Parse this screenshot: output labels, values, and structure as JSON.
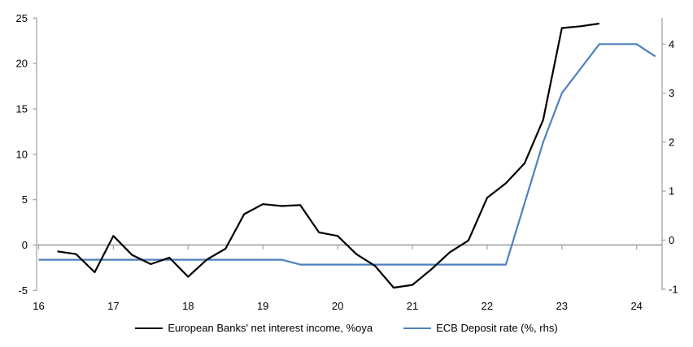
{
  "chart_data": {
    "type": "line",
    "title": "",
    "subtitle": "",
    "grid": "zero-line-only",
    "legend_position": "bottom",
    "x_axis": {
      "ticks": [
        16,
        17,
        18,
        19,
        20,
        21,
        22,
        23,
        24
      ],
      "labels": [
        "16",
        "17",
        "18",
        "19",
        "20",
        "21",
        "22",
        "23",
        "24"
      ],
      "range": [
        16,
        24.35
      ],
      "unit": "year (20xx)"
    },
    "left_axis": {
      "label": "",
      "ticks": [
        25,
        20,
        15,
        10,
        5,
        0,
        -5
      ],
      "range": [
        -5,
        25
      ]
    },
    "right_axis": {
      "label": "",
      "ticks": [
        4,
        3,
        2,
        1,
        0,
        -1
      ],
      "range": [
        -1,
        4.55
      ]
    },
    "series": [
      {
        "name": "European Banks' net interest income, %oya",
        "color": "#000000",
        "axis": "left",
        "points": [
          [
            16.25,
            -0.7
          ],
          [
            16.5,
            -1.0
          ],
          [
            16.75,
            -3.0
          ],
          [
            17.0,
            1.0
          ],
          [
            17.25,
            -1.1
          ],
          [
            17.5,
            -2.1
          ],
          [
            17.75,
            -1.4
          ],
          [
            18.0,
            -3.5
          ],
          [
            18.25,
            -1.6
          ],
          [
            18.5,
            -0.4
          ],
          [
            18.75,
            3.4
          ],
          [
            19.0,
            4.5
          ],
          [
            19.25,
            4.3
          ],
          [
            19.5,
            4.4
          ],
          [
            19.75,
            1.4
          ],
          [
            20.0,
            1.0
          ],
          [
            20.25,
            -1.0
          ],
          [
            20.5,
            -2.3
          ],
          [
            20.75,
            -4.7
          ],
          [
            21.0,
            -4.4
          ],
          [
            21.25,
            -2.7
          ],
          [
            21.5,
            -0.8
          ],
          [
            21.75,
            0.5
          ],
          [
            22.0,
            5.2
          ],
          [
            22.25,
            6.8
          ],
          [
            22.5,
            9.0
          ],
          [
            22.75,
            13.8
          ],
          [
            23.0,
            23.9
          ],
          [
            23.25,
            24.1
          ],
          [
            23.5,
            24.4
          ]
        ]
      },
      {
        "name": "ECB Deposit rate (%, rhs)",
        "color": "#4F81BD",
        "axis": "right",
        "points": [
          [
            16.0,
            -0.4
          ],
          [
            16.25,
            -0.4
          ],
          [
            16.5,
            -0.4
          ],
          [
            16.75,
            -0.4
          ],
          [
            17.0,
            -0.4
          ],
          [
            17.25,
            -0.4
          ],
          [
            17.5,
            -0.4
          ],
          [
            17.75,
            -0.4
          ],
          [
            18.0,
            -0.4
          ],
          [
            18.25,
            -0.4
          ],
          [
            18.5,
            -0.4
          ],
          [
            18.75,
            -0.4
          ],
          [
            19.0,
            -0.4
          ],
          [
            19.25,
            -0.4
          ],
          [
            19.5,
            -0.5
          ],
          [
            19.75,
            -0.5
          ],
          [
            20.0,
            -0.5
          ],
          [
            20.25,
            -0.5
          ],
          [
            20.5,
            -0.5
          ],
          [
            20.75,
            -0.5
          ],
          [
            21.0,
            -0.5
          ],
          [
            21.25,
            -0.5
          ],
          [
            21.5,
            -0.5
          ],
          [
            21.75,
            -0.5
          ],
          [
            22.0,
            -0.5
          ],
          [
            22.25,
            -0.5
          ],
          [
            22.5,
            0.75
          ],
          [
            22.75,
            2.0
          ],
          [
            23.0,
            3.0
          ],
          [
            23.25,
            3.5
          ],
          [
            23.5,
            4.0
          ],
          [
            23.75,
            4.0
          ],
          [
            24.0,
            4.0
          ],
          [
            24.25,
            3.75
          ]
        ]
      }
    ]
  },
  "colors": {
    "background": "#FFFFFF",
    "axis": "#A6A6A6",
    "zero_line": "#A6A6A6",
    "text": "#000000",
    "series_nii": "#000000",
    "series_ecb": "#4F81BD"
  }
}
